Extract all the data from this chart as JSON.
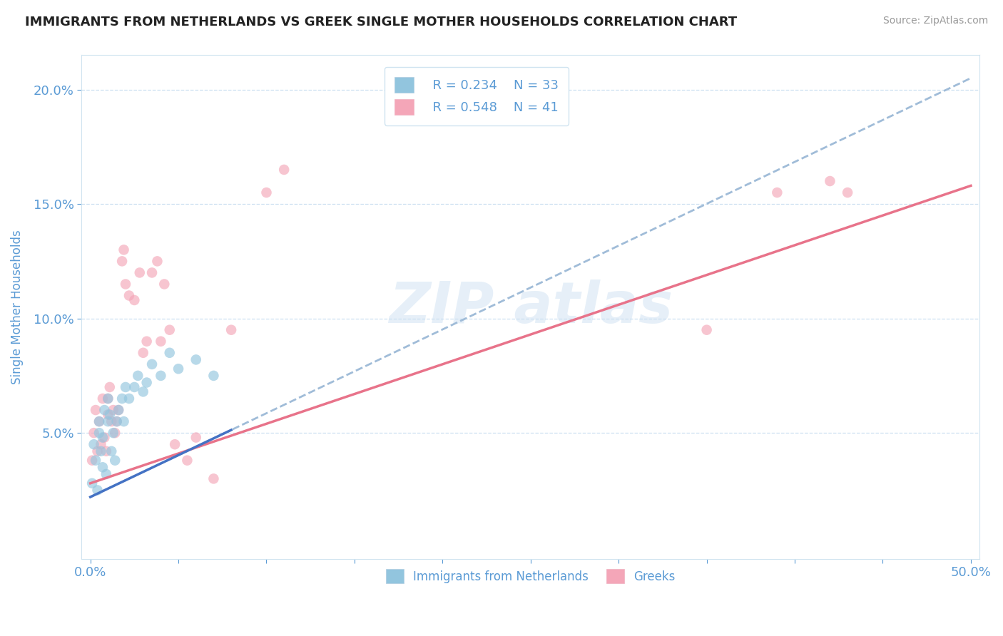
{
  "title": "IMMIGRANTS FROM NETHERLANDS VS GREEK SINGLE MOTHER HOUSEHOLDS CORRELATION CHART",
  "source": "Source: ZipAtlas.com",
  "ylabel": "Single Mother Households",
  "xlim": [
    -0.005,
    0.505
  ],
  "ylim": [
    -0.005,
    0.215
  ],
  "xticks": [
    0.0,
    0.05,
    0.1,
    0.15,
    0.2,
    0.25,
    0.3,
    0.35,
    0.4,
    0.45,
    0.5
  ],
  "yticks": [
    0.05,
    0.1,
    0.15,
    0.2
  ],
  "color_blue": "#92c5de",
  "color_pink": "#f4a6b8",
  "color_blue_line": "#7ab3d4",
  "color_pink_line": "#e8738a",
  "color_axis_text": "#5b9bd5",
  "legend_R1": "R = 0.234",
  "legend_N1": "N = 33",
  "legend_R2": "R = 0.548",
  "legend_N2": "N = 41",
  "blue_scatter_x": [
    0.001,
    0.002,
    0.003,
    0.004,
    0.005,
    0.005,
    0.006,
    0.007,
    0.007,
    0.008,
    0.009,
    0.01,
    0.01,
    0.011,
    0.012,
    0.013,
    0.014,
    0.015,
    0.016,
    0.018,
    0.019,
    0.02,
    0.022,
    0.025,
    0.027,
    0.03,
    0.032,
    0.035,
    0.04,
    0.045,
    0.05,
    0.06,
    0.07
  ],
  "blue_scatter_y": [
    0.028,
    0.045,
    0.038,
    0.025,
    0.05,
    0.055,
    0.042,
    0.035,
    0.048,
    0.06,
    0.032,
    0.055,
    0.065,
    0.058,
    0.042,
    0.05,
    0.038,
    0.055,
    0.06,
    0.065,
    0.055,
    0.07,
    0.065,
    0.07,
    0.075,
    0.068,
    0.072,
    0.08,
    0.075,
    0.085,
    0.078,
    0.082,
    0.075
  ],
  "pink_scatter_x": [
    0.001,
    0.002,
    0.003,
    0.004,
    0.005,
    0.006,
    0.007,
    0.008,
    0.009,
    0.01,
    0.01,
    0.011,
    0.012,
    0.013,
    0.014,
    0.015,
    0.016,
    0.018,
    0.019,
    0.02,
    0.022,
    0.025,
    0.028,
    0.03,
    0.032,
    0.035,
    0.038,
    0.04,
    0.042,
    0.045,
    0.048,
    0.055,
    0.06,
    0.07,
    0.08,
    0.1,
    0.11,
    0.35,
    0.39,
    0.42,
    0.43
  ],
  "pink_scatter_y": [
    0.038,
    0.05,
    0.06,
    0.042,
    0.055,
    0.045,
    0.065,
    0.048,
    0.042,
    0.058,
    0.065,
    0.07,
    0.055,
    0.06,
    0.05,
    0.055,
    0.06,
    0.125,
    0.13,
    0.115,
    0.11,
    0.108,
    0.12,
    0.085,
    0.09,
    0.12,
    0.125,
    0.09,
    0.115,
    0.095,
    0.045,
    0.038,
    0.048,
    0.03,
    0.095,
    0.155,
    0.165,
    0.095,
    0.155,
    0.16,
    0.155
  ],
  "blue_line_x0": 0.0,
  "blue_line_x1": 0.5,
  "blue_line_y0": 0.022,
  "blue_line_y1": 0.205,
  "pink_line_x0": 0.0,
  "pink_line_x1": 0.5,
  "pink_line_y0": 0.028,
  "pink_line_y1": 0.158
}
